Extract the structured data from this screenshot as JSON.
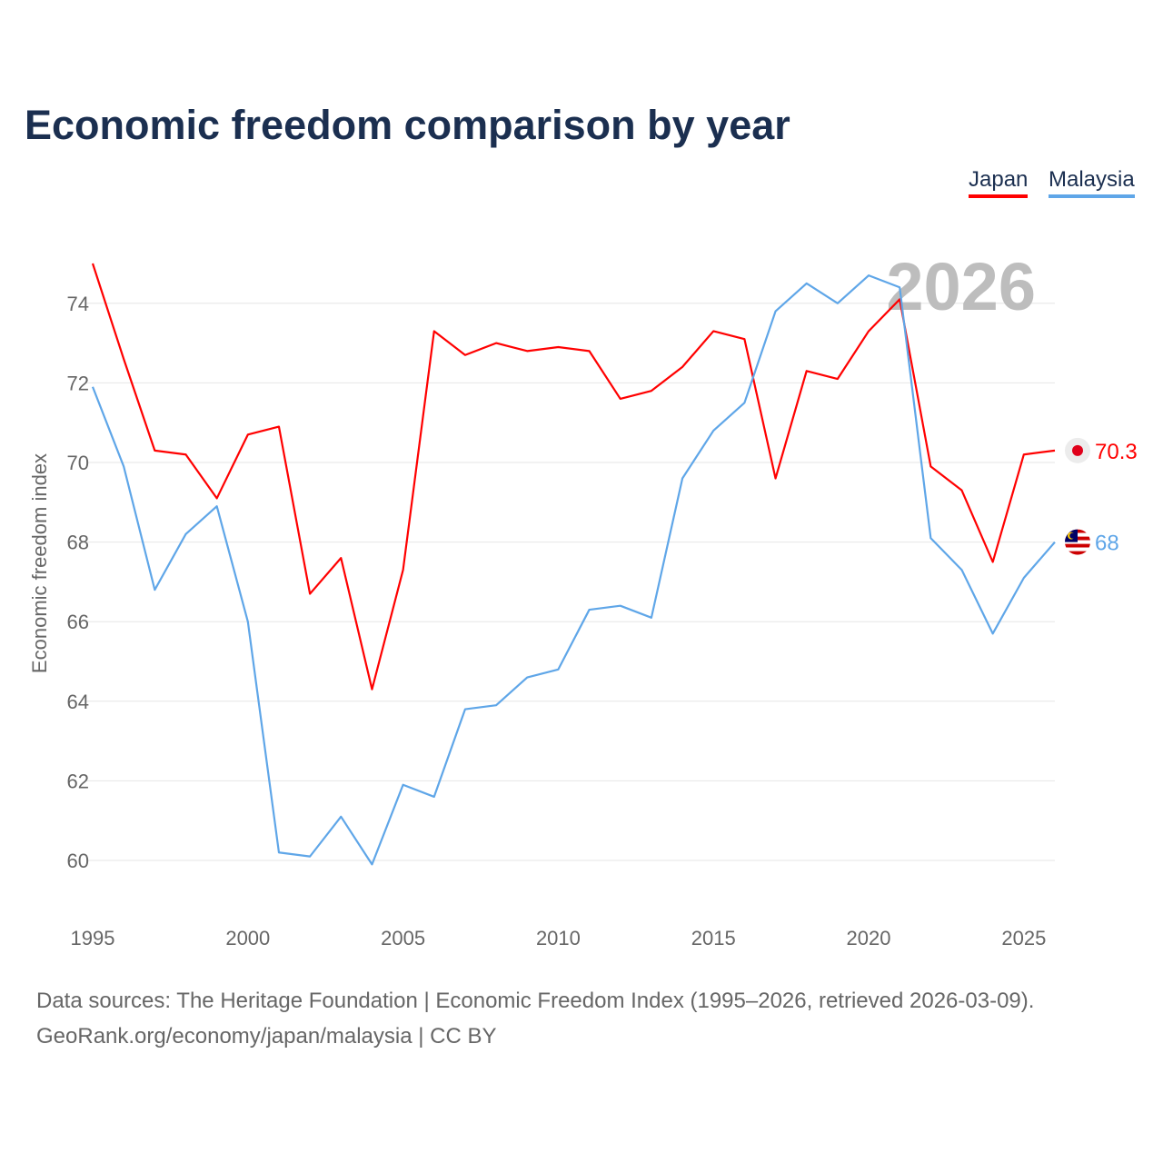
{
  "title": "Economic freedom comparison by year",
  "footer": {
    "line1": "Data sources: The Heritage Foundation | Economic Freedom Index (1995–2026, retrieved 2026-03-09).",
    "line2": "GeoRank.org/economy/japan/malaysia | CC BY"
  },
  "chart_data": {
    "type": "line",
    "title": "Economic freedom comparison by year",
    "xlabel": "",
    "ylabel": "Economic freedom index",
    "x": [
      1995,
      1996,
      1997,
      1998,
      1999,
      2000,
      2001,
      2002,
      2003,
      2004,
      2005,
      2006,
      2007,
      2008,
      2009,
      2010,
      2011,
      2012,
      2013,
      2014,
      2015,
      2016,
      2017,
      2018,
      2019,
      2020,
      2021,
      2022,
      2023,
      2024,
      2025,
      2026
    ],
    "xticks": [
      "1995",
      "2000",
      "2005",
      "2010",
      "2015",
      "2020",
      "2025"
    ],
    "yticks": [
      "60",
      "62",
      "64",
      "66",
      "68",
      "70",
      "72",
      "74"
    ],
    "ylim": [
      58.5,
      75.5
    ],
    "grid": true,
    "legend_position": "top-right",
    "year_watermark": "2026",
    "series": [
      {
        "name": "Japan",
        "color": "#ff0000",
        "end_label": "70.3",
        "values": [
          75.0,
          72.6,
          70.3,
          70.2,
          69.1,
          70.7,
          70.9,
          66.7,
          67.6,
          64.3,
          67.3,
          73.3,
          72.7,
          73.0,
          72.8,
          72.9,
          72.8,
          71.6,
          71.8,
          72.4,
          73.3,
          73.1,
          69.6,
          72.3,
          72.1,
          73.3,
          74.1,
          69.9,
          69.3,
          67.5,
          70.2,
          70.3
        ]
      },
      {
        "name": "Malaysia",
        "color": "#5fa6e8",
        "end_label": "68",
        "values": [
          71.9,
          69.9,
          66.8,
          68.2,
          68.9,
          66.0,
          60.2,
          60.1,
          61.1,
          59.9,
          61.9,
          61.6,
          63.8,
          63.9,
          64.6,
          64.8,
          66.3,
          66.4,
          66.1,
          69.6,
          70.8,
          71.5,
          73.8,
          74.5,
          74.0,
          74.7,
          74.4,
          68.1,
          67.3,
          65.7,
          67.1,
          68.0
        ]
      }
    ]
  }
}
